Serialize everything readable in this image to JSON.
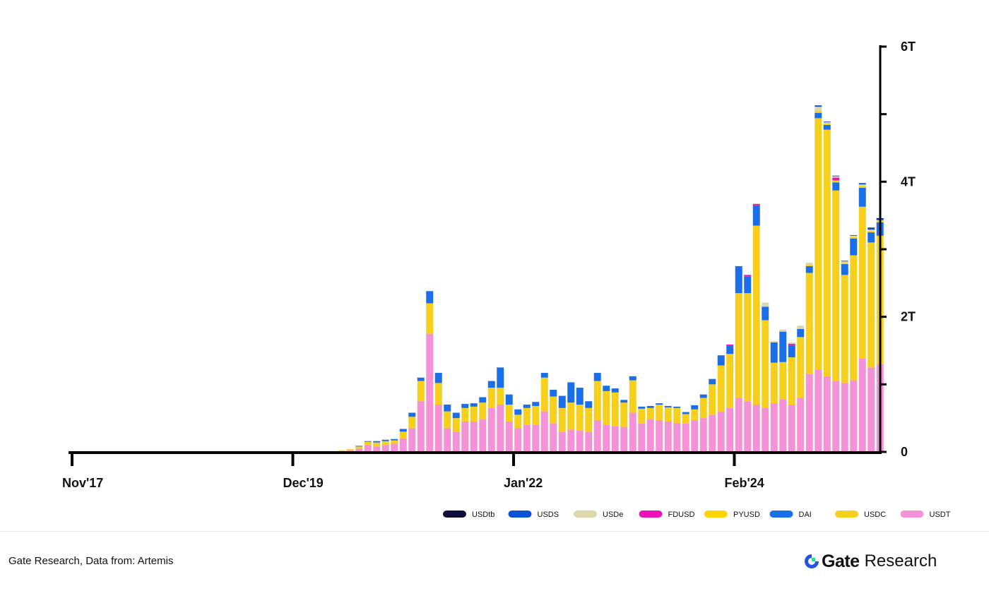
{
  "chart_data": {
    "type": "bar",
    "stacked": true,
    "y_axis_position": "right",
    "ylim": [
      0,
      6
    ],
    "y_ticks": [
      {
        "value": 0,
        "label": "0"
      },
      {
        "value": 1,
        "label": ""
      },
      {
        "value": 2,
        "label": "2T"
      },
      {
        "value": 3,
        "label": ""
      },
      {
        "value": 4,
        "label": "4T"
      },
      {
        "value": 5,
        "label": ""
      },
      {
        "value": 6,
        "label": "6T"
      }
    ],
    "x_ticks": [
      {
        "index": 0,
        "label": "Nov'17"
      },
      {
        "index": 25,
        "label": "Dec'19"
      },
      {
        "index": 50,
        "label": "Jan'22"
      },
      {
        "index": 75,
        "label": "Feb'24"
      }
    ],
    "bar_count": 92,
    "series": [
      {
        "name": "USDT",
        "color": "#f591d6",
        "values": [
          0,
          0,
          0,
          0,
          0,
          0,
          0,
          0,
          0,
          0,
          0,
          0,
          0,
          0,
          0,
          0,
          0,
          0,
          0,
          0,
          0,
          0,
          0,
          0,
          0,
          0,
          0,
          0,
          0,
          0,
          0.01,
          0.02,
          0.05,
          0.1,
          0.08,
          0.1,
          0.12,
          0.2,
          0.35,
          0.75,
          1.75,
          0.7,
          0.35,
          0.3,
          0.45,
          0.45,
          0.48,
          0.65,
          0.7,
          0.45,
          0.35,
          0.4,
          0.4,
          0.6,
          0.42,
          0.3,
          0.33,
          0.32,
          0.3,
          0.47,
          0.4,
          0.38,
          0.37,
          0.58,
          0.42,
          0.48,
          0.47,
          0.45,
          0.43,
          0.42,
          0.47,
          0.5,
          0.55,
          0.6,
          0.65,
          0.8,
          0.75,
          0.7,
          0.65,
          0.72,
          0.78,
          0.7,
          0.8,
          1.15,
          1.22,
          1.12,
          1.05,
          1.02,
          1.06,
          1.38,
          1.25,
          1.3
        ]
      },
      {
        "name": "USDC",
        "color": "#f7d01d",
        "values": [
          0,
          0,
          0,
          0,
          0,
          0,
          0,
          0,
          0,
          0,
          0,
          0,
          0,
          0,
          0,
          0,
          0,
          0,
          0,
          0,
          0,
          0,
          0,
          0,
          0,
          0,
          0,
          0,
          0,
          0,
          0.01,
          0.02,
          0.03,
          0.05,
          0.06,
          0.06,
          0.05,
          0.1,
          0.17,
          0.3,
          0.45,
          0.32,
          0.25,
          0.2,
          0.2,
          0.22,
          0.25,
          0.3,
          0.25,
          0.25,
          0.2,
          0.25,
          0.28,
          0.5,
          0.4,
          0.35,
          0.4,
          0.38,
          0.35,
          0.58,
          0.5,
          0.5,
          0.36,
          0.48,
          0.22,
          0.17,
          0.23,
          0.21,
          0.22,
          0.14,
          0.16,
          0.3,
          0.45,
          0.68,
          0.8,
          1.55,
          1.6,
          2.65,
          1.3,
          0.6,
          0.55,
          0.7,
          0.9,
          1.5,
          3.72,
          3.65,
          2.82,
          1.6,
          1.85,
          2.25,
          1.85,
          1.9
        ]
      },
      {
        "name": "DAI",
        "color": "#1a6fe8",
        "values": [
          0,
          0,
          0,
          0,
          0,
          0,
          0,
          0,
          0,
          0,
          0,
          0,
          0,
          0,
          0,
          0,
          0,
          0,
          0,
          0,
          0,
          0,
          0,
          0,
          0,
          0,
          0,
          0,
          0,
          0,
          0,
          0,
          0.01,
          0.01,
          0.02,
          0.02,
          0.02,
          0.04,
          0.06,
          0.05,
          0.18,
          0.15,
          0.1,
          0.08,
          0.06,
          0.05,
          0.08,
          0.1,
          0.3,
          0.15,
          0.08,
          0.05,
          0.06,
          0.07,
          0.1,
          0.18,
          0.3,
          0.25,
          0.1,
          0.12,
          0.08,
          0.06,
          0.04,
          0.06,
          0.03,
          0.03,
          0.02,
          0.02,
          0.02,
          0.03,
          0.06,
          0.05,
          0.08,
          0.15,
          0.12,
          0.4,
          0.25,
          0.3,
          0.2,
          0.3,
          0.45,
          0.18,
          0.12,
          0.1,
          0.08,
          0.07,
          0.12,
          0.16,
          0.25,
          0.28,
          0.15,
          0.2
        ]
      },
      {
        "name": "PYUSD",
        "color": "#ffd400",
        "values": [
          0,
          0,
          0,
          0,
          0,
          0,
          0,
          0,
          0,
          0,
          0,
          0,
          0,
          0,
          0,
          0,
          0,
          0,
          0,
          0,
          0,
          0,
          0,
          0,
          0,
          0,
          0,
          0,
          0,
          0,
          0,
          0,
          0,
          0,
          0,
          0,
          0,
          0,
          0,
          0,
          0,
          0,
          0,
          0,
          0,
          0,
          0,
          0,
          0,
          0,
          0,
          0,
          0,
          0,
          0,
          0,
          0,
          0,
          0,
          0,
          0,
          0,
          0,
          0,
          0,
          0,
          0,
          0,
          0,
          0,
          0,
          0,
          0,
          0,
          0,
          0,
          0,
          0,
          0,
          0,
          0,
          0,
          0,
          0.02,
          0.03,
          0.02,
          0.03,
          0.02,
          0.02,
          0.03,
          0.02,
          0.02
        ]
      },
      {
        "name": "FDUSD",
        "color": "#ee13b9",
        "values": [
          0,
          0,
          0,
          0,
          0,
          0,
          0,
          0,
          0,
          0,
          0,
          0,
          0,
          0,
          0,
          0,
          0,
          0,
          0,
          0,
          0,
          0,
          0,
          0,
          0,
          0,
          0,
          0,
          0,
          0,
          0,
          0,
          0,
          0,
          0,
          0,
          0,
          0,
          0,
          0,
          0,
          0,
          0,
          0,
          0,
          0,
          0,
          0,
          0,
          0,
          0,
          0,
          0,
          0,
          0,
          0,
          0,
          0,
          0,
          0,
          0,
          0,
          0,
          0,
          0,
          0,
          0,
          0,
          0,
          0,
          0,
          0,
          0,
          0,
          0.02,
          0,
          0.02,
          0.02,
          0,
          0,
          0,
          0.02,
          0,
          0,
          0,
          0,
          0.04,
          0,
          0,
          0,
          0,
          0
        ]
      },
      {
        "name": "USDe",
        "color": "#ddd7aa",
        "values": [
          0,
          0,
          0,
          0,
          0,
          0,
          0,
          0,
          0,
          0,
          0,
          0,
          0,
          0,
          0,
          0,
          0,
          0,
          0,
          0,
          0,
          0,
          0,
          0,
          0,
          0,
          0,
          0,
          0,
          0,
          0,
          0,
          0,
          0,
          0,
          0,
          0,
          0,
          0,
          0,
          0,
          0,
          0,
          0,
          0,
          0,
          0,
          0,
          0,
          0,
          0,
          0,
          0,
          0,
          0,
          0,
          0,
          0,
          0,
          0,
          0,
          0,
          0,
          0,
          0,
          0,
          0,
          0,
          0,
          0,
          0,
          0,
          0,
          0,
          0,
          0,
          0,
          0.01,
          0.06,
          0.02,
          0.03,
          0.02,
          0.05,
          0.03,
          0.06,
          0.02,
          0.02,
          0.02,
          0.02,
          0.02,
          0.02,
          0.01
        ]
      },
      {
        "name": "USDS",
        "color": "#0a53d6",
        "values": [
          0,
          0,
          0,
          0,
          0,
          0,
          0,
          0,
          0,
          0,
          0,
          0,
          0,
          0,
          0,
          0,
          0,
          0,
          0,
          0,
          0,
          0,
          0,
          0,
          0,
          0,
          0,
          0,
          0,
          0,
          0,
          0,
          0,
          0,
          0,
          0,
          0,
          0,
          0,
          0,
          0,
          0,
          0,
          0,
          0,
          0,
          0,
          0,
          0,
          0,
          0,
          0,
          0,
          0,
          0,
          0,
          0,
          0,
          0,
          0,
          0,
          0,
          0,
          0,
          0,
          0,
          0,
          0,
          0,
          0,
          0,
          0,
          0,
          0,
          0,
          0,
          0,
          0,
          0,
          0,
          0,
          0,
          0,
          0,
          0.02,
          0.01,
          0.01,
          0.01,
          0.01,
          0.02,
          0.02,
          0.02
        ]
      },
      {
        "name": "USDtb",
        "color": "#0d0c3a",
        "values": [
          0,
          0,
          0,
          0,
          0,
          0,
          0,
          0,
          0,
          0,
          0,
          0,
          0,
          0,
          0,
          0,
          0,
          0,
          0,
          0,
          0,
          0,
          0,
          0,
          0,
          0,
          0,
          0,
          0,
          0,
          0,
          0,
          0,
          0,
          0,
          0,
          0,
          0,
          0,
          0,
          0,
          0,
          0,
          0,
          0,
          0,
          0,
          0,
          0,
          0,
          0,
          0,
          0,
          0,
          0,
          0,
          0,
          0,
          0,
          0,
          0,
          0,
          0,
          0,
          0,
          0,
          0,
          0,
          0,
          0,
          0,
          0,
          0,
          0,
          0,
          0,
          0,
          0,
          0,
          0,
          0,
          0,
          0,
          0,
          0,
          0,
          0,
          0,
          0,
          0,
          0.01,
          0.01
        ]
      }
    ],
    "legend": {
      "placement": "bottom-right",
      "order": [
        "USDtb",
        "USDS",
        "USDe",
        "FDUSD",
        "PYUSD",
        "DAI",
        "USDC",
        "USDT"
      ]
    }
  },
  "footer": {
    "source": "Gate Research, Data from: Artemis",
    "brand_name": "Gate",
    "brand_sub": "Research"
  }
}
